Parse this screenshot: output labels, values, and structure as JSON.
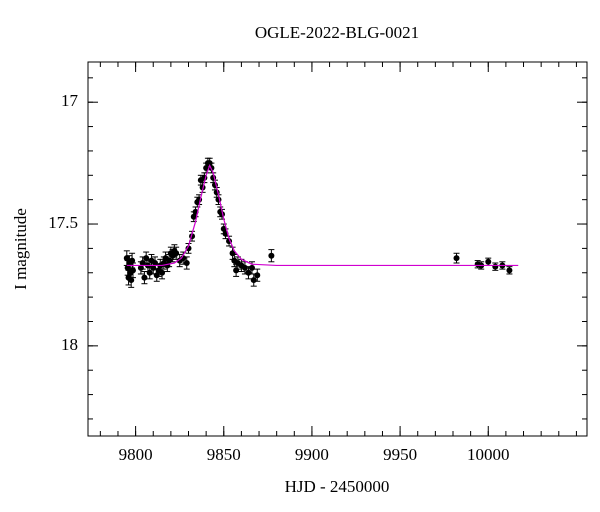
{
  "chart_data": {
    "type": "scatter",
    "title": "OGLE-2022-BLG-0021",
    "x_label": "HJD - 2450000",
    "y_label": "I magnitude",
    "xlim": [
      9773,
      10056
    ],
    "ylim": [
      18.37,
      16.835
    ],
    "xticks": [
      9800,
      9850,
      9900,
      9950,
      10000
    ],
    "yticks": [
      17,
      17.5,
      18
    ],
    "x_minor_step": 10,
    "y_minor_step": 0.1,
    "series": [
      {
        "type": "scatter",
        "color": "#000000",
        "x": [
          9795,
          9795.5,
          9796,
          9796.5,
          9797,
          9797.5,
          9798,
          9798.5,
          9803,
          9804,
          9805,
          9806,
          9807,
          9808,
          9809,
          9810,
          9811,
          9812,
          9813,
          9814,
          9815,
          9816,
          9817,
          9818,
          9819,
          9820,
          9821,
          9822,
          9823,
          9825,
          9827,
          9829,
          9830,
          9832,
          9833,
          9834,
          9835,
          9836,
          9837,
          9838,
          9839,
          9840,
          9841,
          9842,
          9843,
          9844,
          9845,
          9846,
          9847,
          9848,
          9849,
          9850,
          9851,
          9853,
          9855,
          9856,
          9857,
          9858,
          9860,
          9862,
          9864,
          9866,
          9867,
          9869,
          9877,
          9982,
          9994,
          9996,
          10000,
          10004,
          10008,
          10012
        ],
        "values": [
          17.64,
          17.68,
          17.72,
          17.66,
          17.7,
          17.73,
          17.65,
          17.69,
          17.68,
          17.66,
          17.72,
          17.64,
          17.67,
          17.7,
          17.65,
          17.68,
          17.66,
          17.71,
          17.69,
          17.67,
          17.7,
          17.66,
          17.64,
          17.67,
          17.65,
          17.62,
          17.63,
          17.61,
          17.62,
          17.65,
          17.64,
          17.66,
          17.6,
          17.55,
          17.47,
          17.45,
          17.41,
          17.4,
          17.32,
          17.35,
          17.31,
          17.27,
          17.25,
          17.25,
          17.27,
          17.31,
          17.34,
          17.37,
          17.4,
          17.45,
          17.46,
          17.52,
          17.54,
          17.57,
          17.62,
          17.65,
          17.69,
          17.66,
          17.67,
          17.68,
          17.7,
          17.68,
          17.73,
          17.71,
          17.63,
          17.64,
          17.665,
          17.67,
          17.655,
          17.675,
          17.67,
          17.69
        ],
        "errors": [
          0.03,
          0.03,
          0.03,
          0.03,
          0.03,
          0.03,
          0.03,
          0.03,
          0.025,
          0.025,
          0.025,
          0.025,
          0.025,
          0.025,
          0.025,
          0.025,
          0.025,
          0.025,
          0.025,
          0.025,
          0.025,
          0.025,
          0.025,
          0.025,
          0.025,
          0.025,
          0.025,
          0.025,
          0.025,
          0.025,
          0.025,
          0.025,
          0.02,
          0.02,
          0.02,
          0.02,
          0.02,
          0.02,
          0.02,
          0.02,
          0.02,
          0.02,
          0.02,
          0.02,
          0.02,
          0.02,
          0.02,
          0.02,
          0.02,
          0.02,
          0.02,
          0.02,
          0.02,
          0.02,
          0.025,
          0.025,
          0.025,
          0.025,
          0.025,
          0.025,
          0.025,
          0.025,
          0.025,
          0.025,
          0.025,
          0.02,
          0.015,
          0.015,
          0.015,
          0.015,
          0.015,
          0.015
        ]
      },
      {
        "type": "line",
        "color": "#d000d0",
        "x": [
          9795,
          9815,
          9822,
          9826,
          9830,
          9834,
          9837,
          9840,
          9842,
          9844,
          9847,
          9850,
          9853,
          9856,
          9860,
          9866,
          9880,
          10017
        ],
        "values": [
          17.67,
          17.67,
          17.66,
          17.64,
          17.59,
          17.49,
          17.39,
          17.3,
          17.26,
          17.29,
          17.38,
          17.48,
          17.56,
          17.61,
          17.645,
          17.665,
          17.67,
          17.67
        ]
      }
    ]
  }
}
